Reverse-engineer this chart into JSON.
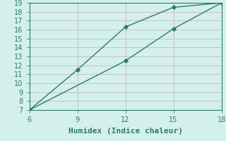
{
  "line1_x": [
    6,
    9,
    12,
    15,
    18
  ],
  "line1_y": [
    7.0,
    11.5,
    16.3,
    18.5,
    19.0
  ],
  "line2_x": [
    6,
    12,
    15,
    18
  ],
  "line2_y": [
    7.0,
    12.5,
    16.1,
    19.0
  ],
  "xlabel": "Humidex (Indice chaleur)",
  "xlim": [
    6,
    18
  ],
  "ylim": [
    7,
    19
  ],
  "xticks": [
    6,
    9,
    12,
    15,
    18
  ],
  "yticks": [
    7,
    8,
    9,
    10,
    11,
    12,
    13,
    14,
    15,
    16,
    17,
    18,
    19
  ],
  "line_color": "#2d7a6e",
  "bg_color": "#d4f0ea",
  "grid_color": "#c4b8c8",
  "marker": "D",
  "markersize": 2.8,
  "linewidth": 1.0,
  "xlabel_fontsize": 8,
  "tick_fontsize": 7,
  "tick_color": "#2d7a6e",
  "xlabel_color": "#2d7a6e"
}
